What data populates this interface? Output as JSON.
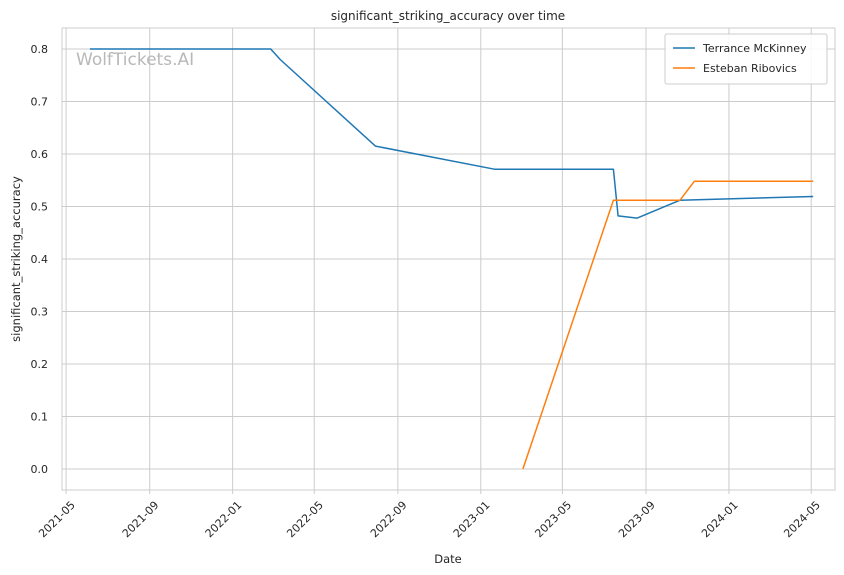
{
  "chart_data": {
    "type": "line",
    "title": "significant_striking_accuracy over time",
    "xlabel": "Date",
    "ylabel": "significant_striking_accuracy",
    "watermark": "WolfTickets.AI",
    "x_ticks": [
      "2021-05",
      "2021-09",
      "2022-01",
      "2022-05",
      "2022-09",
      "2023-01",
      "2023-05",
      "2023-09",
      "2024-01",
      "2024-05"
    ],
    "y_ticks": [
      0.0,
      0.1,
      0.2,
      0.3,
      0.4,
      0.5,
      0.6,
      0.7,
      0.8
    ],
    "y_tick_labels": [
      "0.0",
      "0.1",
      "0.2",
      "0.3",
      "0.4",
      "0.5",
      "0.6",
      "0.7",
      "0.8"
    ],
    "xlim": [
      "2021-04-25",
      "2024-06-05"
    ],
    "ylim": [
      -0.04,
      0.84
    ],
    "grid": true,
    "legend_position": "top-right",
    "series": [
      {
        "name": "Terrance McKinney",
        "color": "#1f77b4",
        "points": [
          {
            "x": "2021-06-05",
            "y": 0.8
          },
          {
            "x": "2022-02-26",
            "y": 0.8
          },
          {
            "x": "2022-03-12",
            "y": 0.78
          },
          {
            "x": "2022-07-30",
            "y": 0.615
          },
          {
            "x": "2023-01-21",
            "y": 0.571
          },
          {
            "x": "2023-07-15",
            "y": 0.571
          },
          {
            "x": "2023-07-22",
            "y": 0.482
          },
          {
            "x": "2023-08-19",
            "y": 0.478
          },
          {
            "x": "2023-10-21",
            "y": 0.512
          },
          {
            "x": "2024-05-04",
            "y": 0.519
          }
        ]
      },
      {
        "name": "Esteban Ribovics",
        "color": "#ff7f0e",
        "points": [
          {
            "x": "2023-03-04",
            "y": 0.0
          },
          {
            "x": "2023-07-15",
            "y": 0.512
          },
          {
            "x": "2023-10-21",
            "y": 0.512
          },
          {
            "x": "2023-11-11",
            "y": 0.548
          },
          {
            "x": "2024-05-04",
            "y": 0.548
          }
        ]
      }
    ]
  }
}
